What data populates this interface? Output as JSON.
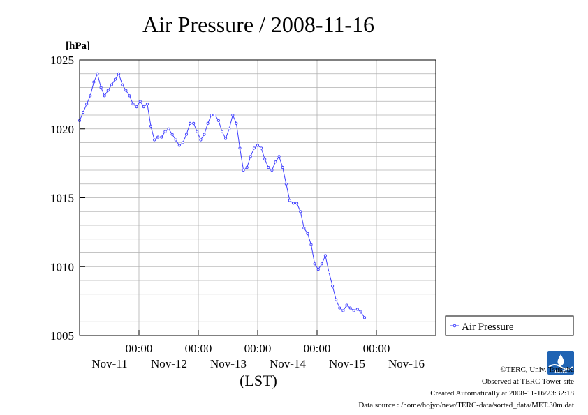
{
  "chart_data": {
    "type": "line",
    "title": "Air Pressure / 2008-11-16",
    "yunit": "[hPa]",
    "xlabel": "(LST)",
    "ylim": [
      1005,
      1025
    ],
    "yticks": [
      1005,
      1010,
      1015,
      1020,
      1025
    ],
    "xlim_days": [
      0,
      6
    ],
    "x_tick_time": "00:00",
    "x_ticks": [
      "Nov-11",
      "Nov-12",
      "Nov-13",
      "Nov-14",
      "Nov-15",
      "Nov-16"
    ],
    "grid": true,
    "legend_position": "right",
    "series": [
      {
        "name": "Air Pressure",
        "color": "#3f3fff",
        "x": [
          0.0,
          0.06,
          0.12,
          0.18,
          0.24,
          0.3,
          0.36,
          0.42,
          0.48,
          0.54,
          0.6,
          0.66,
          0.72,
          0.78,
          0.84,
          0.9,
          0.96,
          1.02,
          1.08,
          1.14,
          1.2,
          1.26,
          1.32,
          1.38,
          1.44,
          1.5,
          1.56,
          1.62,
          1.68,
          1.74,
          1.8,
          1.86,
          1.92,
          1.98,
          2.04,
          2.1,
          2.16,
          2.22,
          2.28,
          2.34,
          2.4,
          2.46,
          2.52,
          2.58,
          2.64,
          2.7,
          2.76,
          2.82,
          2.88,
          2.94,
          3.0,
          3.06,
          3.12,
          3.18,
          3.24,
          3.3,
          3.36,
          3.42,
          3.48,
          3.54,
          3.6,
          3.66,
          3.72,
          3.78,
          3.84,
          3.9,
          3.96,
          4.02,
          4.08,
          4.14,
          4.2,
          4.26,
          4.32,
          4.38,
          4.44,
          4.5,
          4.56,
          4.62,
          4.68,
          4.74,
          4.8,
          4.86,
          4.92,
          4.98,
          5.04,
          5.1,
          5.16,
          5.22,
          5.28,
          5.34,
          5.4,
          5.46,
          5.52,
          5.58,
          5.64,
          5.7,
          5.76,
          5.82,
          5.88,
          5.94,
          6.0
        ],
        "y": [
          1020.6,
          1021.2,
          1021.8,
          1022.4,
          1023.4,
          1024.0,
          1023.0,
          1022.4,
          1022.8,
          1023.2,
          1023.6,
          1024.0,
          1023.2,
          1022.8,
          1022.4,
          1021.8,
          1021.6,
          1022.0,
          1021.6,
          1021.8,
          1020.2,
          1019.2,
          1019.4,
          1019.4,
          1019.8,
          1020.0,
          1019.6,
          1019.2,
          1018.8,
          1019.0,
          1019.6,
          1020.4,
          1020.4,
          1019.8,
          1019.2,
          1019.6,
          1020.4,
          1021.0,
          1021.0,
          1020.6,
          1019.8,
          1019.3,
          1020.0,
          1021.0,
          1020.4,
          1018.6,
          1017.0,
          1017.2,
          1018.0,
          1018.6,
          1018.8,
          1018.6,
          1017.8,
          1017.2,
          1017.0,
          1017.6,
          1018.0,
          1017.2,
          1016.0,
          1014.8,
          1014.6,
          1014.6,
          1014.0,
          1012.8,
          1012.4,
          1011.6,
          1010.2,
          1009.8,
          1010.2,
          1010.8,
          1009.6,
          1008.6,
          1007.6,
          1007.0,
          1006.8,
          1007.2,
          1007.0,
          1006.8,
          1006.9,
          1006.7,
          1006.3,
          null,
          null,
          null,
          null,
          null,
          null,
          null,
          null,
          null,
          null,
          null,
          null,
          null,
          null,
          null,
          null,
          null,
          null,
          null,
          null
        ]
      }
    ]
  },
  "footer": {
    "copyright": "©TERC, Univ. Tsukuba",
    "observed": "Observed at TERC Tower site",
    "created": "Created Automatically at 2008-11-16/23:32:18",
    "source": "Data source : /home/hojyo/new/TERC-data/sorted_data/MET.30m.dat"
  },
  "logo": {
    "text": "TERC"
  }
}
